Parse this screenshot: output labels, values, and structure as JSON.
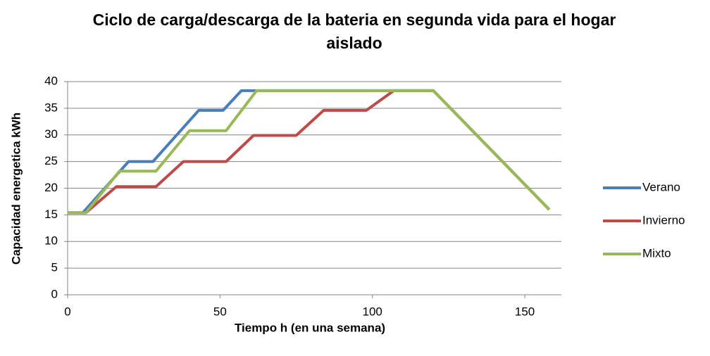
{
  "chart_data": {
    "type": "line",
    "title": "Ciclo de carga/descarga de la bateria en segunda vida para el hogar aislado",
    "xlabel": "Tiempo h (en una semana)",
    "ylabel": "Capacidad energetica kWh",
    "xlim": [
      0,
      162
    ],
    "xticks": [
      0,
      50,
      100,
      150
    ],
    "ylim": [
      0,
      40
    ],
    "yticks": [
      0,
      5,
      10,
      15,
      20,
      25,
      30,
      35,
      40
    ],
    "grid": true,
    "legend": "right",
    "series": [
      {
        "name": "Verano",
        "color": "#4a7ebb",
        "x": [
          0,
          5,
          20,
          28,
          43,
          51,
          57,
          120,
          158
        ],
        "values": [
          15.4,
          15.4,
          25,
          25,
          34.6,
          34.6,
          38.3,
          38.3,
          16
        ]
      },
      {
        "name": "Invierno",
        "color": "#be4b48",
        "x": [
          0,
          6,
          16,
          29,
          38,
          52,
          61,
          75,
          84,
          98,
          107,
          120,
          158
        ],
        "values": [
          15.4,
          15.4,
          20.3,
          20.3,
          25,
          25,
          29.9,
          29.9,
          34.6,
          34.6,
          38.3,
          38.3,
          16
        ]
      },
      {
        "name": "Mixto",
        "color": "#98b954",
        "x": [
          0,
          6,
          17,
          29,
          40,
          52,
          62,
          120,
          158
        ],
        "values": [
          15.4,
          15.4,
          23.2,
          23.2,
          30.8,
          30.8,
          38.3,
          38.3,
          16
        ]
      }
    ]
  }
}
